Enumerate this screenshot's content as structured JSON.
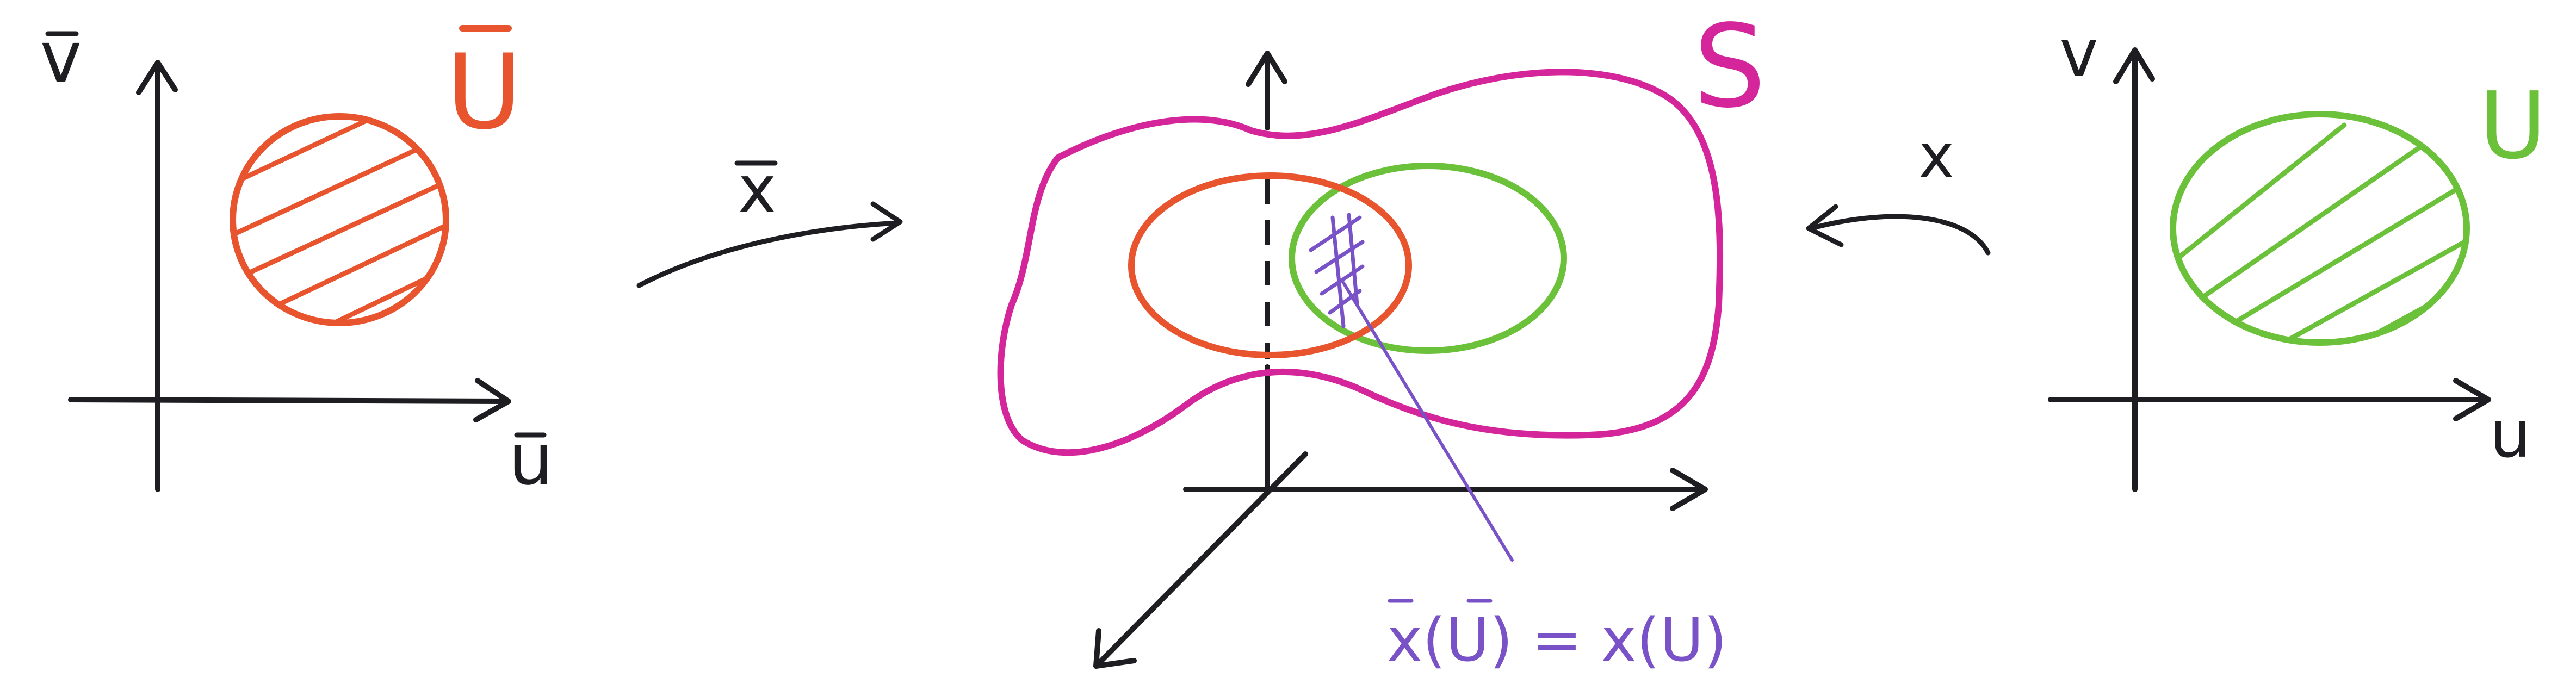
{
  "colors": {
    "ink": "#1e1e22",
    "red": "#e8542e",
    "green": "#6cc13a",
    "magenta": "#d4259b",
    "purple": "#7a52c7"
  },
  "left_domain": {
    "vertical_axis_label": "v",
    "horizontal_axis_label": "u",
    "region_label": "U"
  },
  "right_domain": {
    "vertical_axis_label": "v",
    "horizontal_axis_label": "u",
    "region_label": "U"
  },
  "maps": {
    "left_map_label": "x",
    "right_map_label": "x"
  },
  "surface": {
    "label": "S",
    "overlap_annotation": "x(U) = x(U)"
  }
}
